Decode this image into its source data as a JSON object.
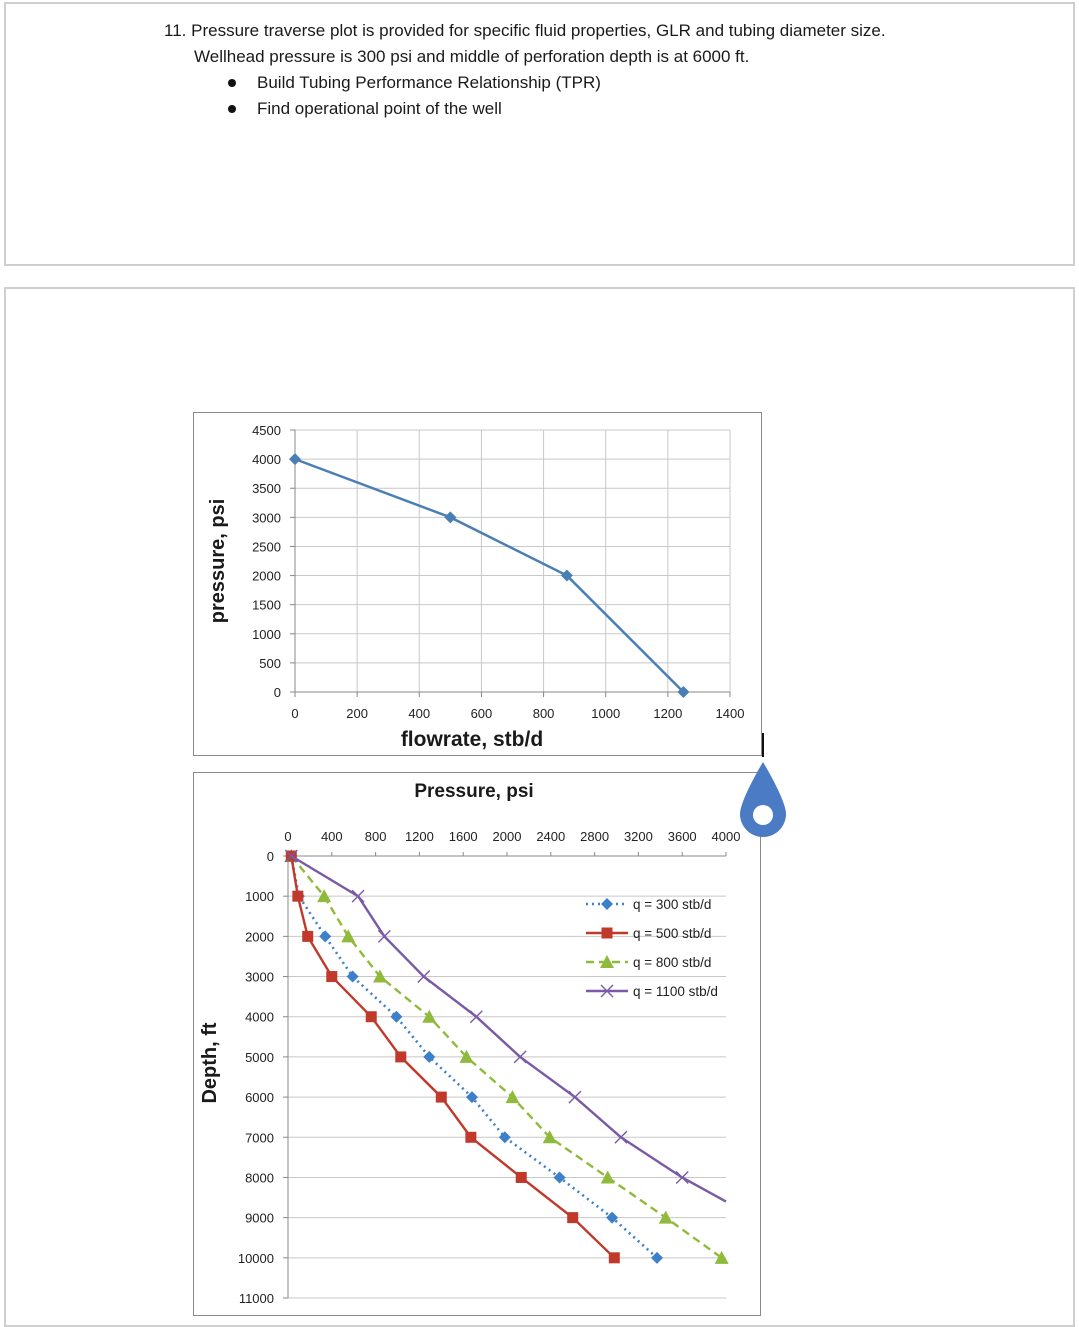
{
  "question": {
    "number": "11.",
    "line1": "Pressure traverse plot is provided for specific fluid properties, GLR and tubing diameter size.",
    "line2": "Wellhead pressure is 300 psi and middle of perforation depth is at 6000 ft.",
    "bullets": [
      "Build Tubing Performance Relationship (TPR)",
      "Find operational point of the well"
    ]
  },
  "icons": {
    "drop": "water-drop-icon",
    "cursor": "text-cursor"
  },
  "colors": {
    "ipr_line": "#4a7fb5",
    "q300": "#3d7fc9",
    "q500": "#c0392b",
    "q800": "#8fba3c",
    "q1100": "#7a5aa5",
    "drop": "#4a7bc4"
  },
  "chart_data": [
    {
      "type": "line",
      "ylabel": "pressure, psi",
      "xlabel": "flowrate, stb/d",
      "xlim": [
        0,
        1400
      ],
      "ylim": [
        0,
        4500
      ],
      "xticks": [
        0,
        200,
        400,
        600,
        800,
        1000,
        1200,
        1400
      ],
      "yticks": [
        0,
        500,
        1000,
        1500,
        2000,
        2500,
        3000,
        3500,
        4000,
        4500
      ],
      "grid": true,
      "series": [
        {
          "x": [
            0,
            500,
            875,
            1250
          ],
          "y": [
            4000,
            3000,
            2000,
            0
          ],
          "marker": "diamond",
          "color": "#4a7fb5"
        }
      ]
    },
    {
      "type": "line",
      "title": "Pressure, psi",
      "ylabel": "Depth, ft",
      "xlim": [
        0,
        4000
      ],
      "ylim": [
        0,
        11000
      ],
      "y_inverted": true,
      "x_axis_position": "top",
      "xticks": [
        0,
        400,
        800,
        1200,
        1600,
        2000,
        2400,
        2800,
        3200,
        3600,
        4000
      ],
      "yticks": [
        0,
        1000,
        2000,
        3000,
        4000,
        5000,
        6000,
        7000,
        8000,
        9000,
        10000,
        11000
      ],
      "grid": "horizontal",
      "legend_position": "top-right",
      "series": [
        {
          "name": "q = 300 stb/d",
          "color": "#3d7fc9",
          "style": "dotted",
          "marker": "diamond",
          "x": [
            30,
            100,
            340,
            590,
            990,
            1290,
            1680,
            1980,
            2480,
            2960,
            3370
          ],
          "y": [
            0,
            1000,
            2000,
            3000,
            4000,
            5000,
            6000,
            7000,
            8000,
            9000,
            10000
          ]
        },
        {
          "name": "q = 500 stb/d",
          "color": "#c0392b",
          "style": "solid",
          "marker": "square",
          "x": [
            30,
            90,
            180,
            400,
            760,
            1030,
            1400,
            1670,
            2130,
            2600,
            2980
          ],
          "y": [
            0,
            1000,
            2000,
            3000,
            4000,
            5000,
            6000,
            7000,
            8000,
            9000,
            10000
          ]
        },
        {
          "name": "q = 800 stb/d",
          "color": "#8fba3c",
          "style": "dashed",
          "marker": "triangle",
          "x": [
            30,
            330,
            550,
            840,
            1290,
            1630,
            2050,
            2390,
            2920,
            3450,
            3960
          ],
          "y": [
            0,
            1000,
            2000,
            3000,
            4000,
            5000,
            6000,
            7000,
            8000,
            9000,
            10000
          ]
        },
        {
          "name": "q = 1100 stb/d",
          "color": "#7a5aa5",
          "style": "solid",
          "marker": "x",
          "x": [
            30,
            640,
            880,
            1240,
            1720,
            2120,
            2620,
            3040,
            3600,
            4000
          ],
          "y": [
            0,
            1000,
            2000,
            3000,
            4000,
            5000,
            6000,
            7000,
            8000,
            8600
          ]
        }
      ]
    }
  ]
}
